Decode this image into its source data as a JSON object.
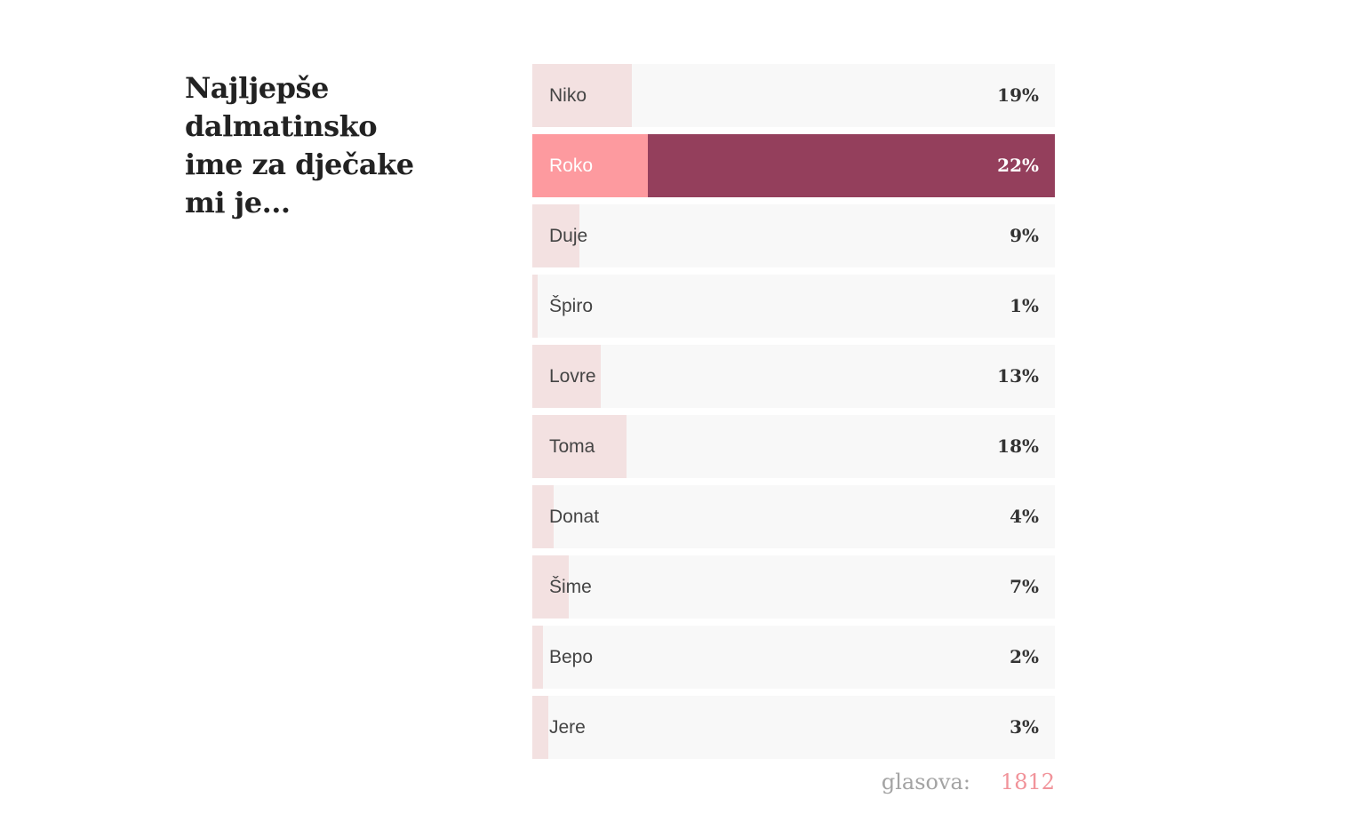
{
  "poll": {
    "question": "Najljepše dalmatinsko ime za dječake mi je...",
    "options": [
      {
        "label": "Niko",
        "percent_text": "19%",
        "percent": 19,
        "selected": false
      },
      {
        "label": "Roko",
        "percent_text": "22%",
        "percent": 22,
        "selected": true
      },
      {
        "label": "Duje",
        "percent_text": "9%",
        "percent": 9,
        "selected": false
      },
      {
        "label": "Špiro",
        "percent_text": "1%",
        "percent": 1,
        "selected": false
      },
      {
        "label": "Lovre",
        "percent_text": "13%",
        "percent": 13,
        "selected": false
      },
      {
        "label": "Toma",
        "percent_text": "18%",
        "percent": 18,
        "selected": false
      },
      {
        "label": "Donat",
        "percent_text": "4%",
        "percent": 4,
        "selected": false
      },
      {
        "label": "Šime",
        "percent_text": "7%",
        "percent": 7,
        "selected": false
      },
      {
        "label": "Bepo",
        "percent_text": "2%",
        "percent": 2,
        "selected": false
      },
      {
        "label": "Jere",
        "percent_text": "3%",
        "percent": 3,
        "selected": false
      }
    ],
    "votes_label": "glasova:",
    "votes_count": "1812"
  },
  "colors": {
    "track": "#f8f8f8",
    "fill": "#f3e1e1",
    "selected_track": "#943f5c",
    "selected_fill": "#fd9a9f",
    "votes_count": "#f1939a"
  }
}
